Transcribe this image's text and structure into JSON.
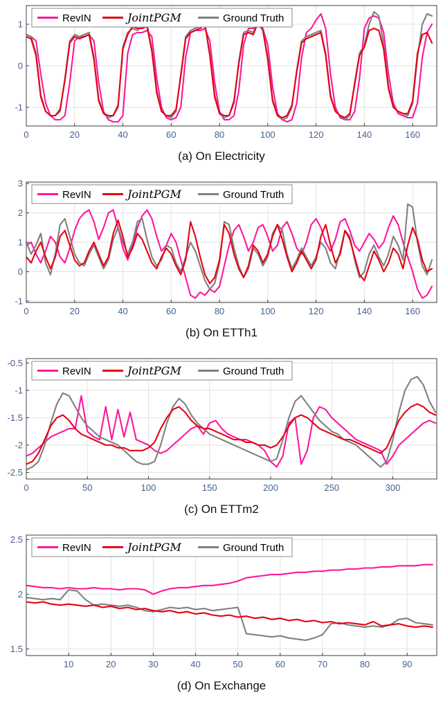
{
  "figure": {
    "legend_labels": [
      "RevIN",
      "JointPGM",
      "Ground Truth"
    ]
  },
  "colors": {
    "revin": "#ff169b",
    "jointpgm": "#e60012",
    "ground_truth": "#7f7f7f",
    "tick_label": "#44618c",
    "grid": "#e2e2e2",
    "axis": "#3c3c3c",
    "legend_border": "#8a8a8a",
    "caption": "#111111"
  },
  "chart_data": [
    {
      "id": "electricity",
      "type": "line",
      "title": "(a) On Electricity",
      "xlabel": "",
      "ylabel": "",
      "xlim": [
        0,
        170
      ],
      "ylim": [
        -1.45,
        1.45
      ],
      "xticks": [
        0,
        20,
        40,
        60,
        80,
        100,
        120,
        140,
        160
      ],
      "yticks": [
        -1,
        0,
        1
      ],
      "x_start": 0,
      "x_step": 2,
      "grid": true,
      "legend_position": "top-left",
      "series": [
        {
          "name": "RevIN",
          "color_key": "revin",
          "values": [
            0.75,
            0.7,
            0.6,
            -0.2,
            -0.9,
            -1.2,
            -1.3,
            -1.3,
            -1.2,
            -0.4,
            0.6,
            0.7,
            0.7,
            0.75,
            0.6,
            -0.4,
            -1.1,
            -1.3,
            -1.35,
            -1.35,
            -1.2,
            0.3,
            0.75,
            0.8,
            0.8,
            0.85,
            0.7,
            -0.3,
            -1.0,
            -1.25,
            -1.3,
            -1.25,
            -1.0,
            0.2,
            0.8,
            0.85,
            0.85,
            0.9,
            0.6,
            -0.4,
            -1.1,
            -1.3,
            -1.3,
            -1.2,
            -0.6,
            0.5,
            0.9,
            0.9,
            0.95,
            0.9,
            0.5,
            -0.5,
            -1.15,
            -1.3,
            -1.35,
            -1.3,
            -0.9,
            0.2,
            0.8,
            0.9,
            1.1,
            1.25,
            0.9,
            -0.2,
            -1.0,
            -1.25,
            -1.3,
            -1.3,
            -1.1,
            -0.3,
            0.9,
            1.15,
            1.2,
            1.15,
            0.8,
            -0.2,
            -0.9,
            -1.15,
            -1.2,
            -1.25,
            -1.25,
            -0.9,
            0.2,
            0.8,
            1.0
          ]
        },
        {
          "name": "JointPGM",
          "color_key": "jointpgm",
          "values": [
            0.7,
            0.65,
            0.25,
            -0.75,
            -1.1,
            -1.2,
            -1.2,
            -1.05,
            -0.35,
            0.55,
            0.7,
            0.65,
            0.7,
            0.75,
            0.15,
            -0.85,
            -1.15,
            -1.2,
            -1.2,
            -0.95,
            0.4,
            0.75,
            0.95,
            0.9,
            0.9,
            0.95,
            0.35,
            -0.65,
            -1.1,
            -1.2,
            -1.2,
            -1.05,
            -0.25,
            0.65,
            0.8,
            0.85,
            0.9,
            1.0,
            0.25,
            -0.75,
            -1.15,
            -1.2,
            -1.2,
            -0.85,
            0.05,
            0.75,
            0.8,
            0.75,
            1.05,
            0.85,
            0.15,
            -0.85,
            -1.2,
            -1.25,
            -1.2,
            -0.95,
            -0.15,
            0.55,
            0.65,
            0.7,
            0.75,
            0.8,
            0.25,
            -0.75,
            -1.1,
            -1.2,
            -1.25,
            -1.15,
            -0.45,
            0.25,
            0.45,
            0.85,
            0.9,
            0.85,
            0.4,
            -0.55,
            -1.0,
            -1.1,
            -1.15,
            -1.15,
            -0.85,
            0.3,
            0.75,
            0.8,
            0.55
          ]
        },
        {
          "name": "Ground Truth",
          "color_key": "ground_truth",
          "values": [
            0.75,
            0.7,
            0.3,
            -0.7,
            -1.1,
            -1.2,
            -1.2,
            -1.1,
            -0.3,
            0.6,
            0.75,
            0.7,
            0.75,
            0.8,
            0.2,
            -0.8,
            -1.15,
            -1.25,
            -1.2,
            -1.0,
            0.45,
            0.8,
            0.9,
            0.85,
            0.95,
            1.0,
            0.4,
            -0.6,
            -1.1,
            -1.2,
            -1.25,
            -1.1,
            -0.2,
            0.7,
            0.85,
            0.9,
            0.95,
            1.0,
            0.3,
            -0.7,
            -1.15,
            -1.25,
            -1.2,
            -0.9,
            0.1,
            0.8,
            0.85,
            0.8,
            1.1,
            0.9,
            0.2,
            -0.8,
            -1.2,
            -1.3,
            -1.25,
            -1.0,
            -0.1,
            0.6,
            0.7,
            0.75,
            0.8,
            0.85,
            0.3,
            -0.7,
            -1.1,
            -1.2,
            -1.3,
            -1.2,
            -0.4,
            0.3,
            0.5,
            1.0,
            1.3,
            1.2,
            0.5,
            -0.5,
            -1.0,
            -1.1,
            -1.15,
            -1.2,
            -0.9,
            0.2,
            1.0,
            1.25,
            1.2
          ]
        }
      ]
    },
    {
      "id": "etth1",
      "type": "line",
      "title": "(b) On ETTh1",
      "xlabel": "",
      "ylabel": "",
      "xlim": [
        0,
        170
      ],
      "ylim": [
        -1.05,
        3.05
      ],
      "xticks": [
        0,
        20,
        40,
        60,
        80,
        100,
        120,
        140,
        160
      ],
      "yticks": [
        -1,
        0,
        1,
        2,
        3
      ],
      "x_start": 0,
      "x_step": 2,
      "grid": true,
      "legend_position": "top-left",
      "series": [
        {
          "name": "RevIN",
          "color_key": "revin",
          "values": [
            0.9,
            1.0,
            0.6,
            0.3,
            0.7,
            1.2,
            1.0,
            0.5,
            0.3,
            0.8,
            1.4,
            1.8,
            2.0,
            2.1,
            1.7,
            1.1,
            1.5,
            2.0,
            2.1,
            1.5,
            0.8,
            0.4,
            0.9,
            1.5,
            1.9,
            2.1,
            1.8,
            1.2,
            0.7,
            0.9,
            1.3,
            1.0,
            0.4,
            -0.2,
            -0.8,
            -0.9,
            -0.7,
            -0.8,
            -0.6,
            -0.7,
            -0.5,
            0.2,
            0.9,
            1.4,
            1.6,
            1.2,
            0.7,
            1.0,
            1.5,
            1.6,
            1.2,
            0.7,
            0.9,
            1.5,
            1.7,
            1.3,
            0.8,
            0.6,
            1.0,
            1.6,
            1.8,
            1.5,
            1.0,
            0.7,
            1.1,
            1.7,
            1.8,
            1.4,
            0.9,
            0.7,
            1.0,
            1.3,
            1.1,
            0.8,
            1.0,
            1.5,
            1.9,
            1.6,
            1.0,
            0.5,
            0.0,
            -0.6,
            -0.9,
            -0.8,
            -0.5
          ]
        },
        {
          "name": "JointPGM",
          "color_key": "jointpgm",
          "values": [
            0.5,
            0.3,
            0.7,
            1.0,
            0.5,
            0.1,
            0.5,
            1.2,
            1.4,
            0.9,
            0.4,
            0.2,
            0.3,
            0.7,
            1.0,
            0.6,
            0.2,
            0.5,
            1.3,
            1.75,
            1.2,
            0.5,
            0.8,
            1.3,
            1.1,
            0.7,
            0.3,
            0.1,
            0.5,
            0.8,
            0.6,
            0.2,
            -0.1,
            0.4,
            1.7,
            1.2,
            0.5,
            -0.1,
            -0.4,
            -0.2,
            0.4,
            1.6,
            1.3,
            0.6,
            0.1,
            -0.2,
            0.2,
            0.9,
            0.7,
            0.3,
            0.6,
            1.2,
            1.6,
            1.1,
            0.5,
            0.0,
            0.3,
            0.7,
            0.4,
            0.1,
            0.4,
            1.2,
            1.6,
            0.9,
            0.3,
            0.6,
            1.4,
            1.1,
            0.5,
            -0.1,
            -0.3,
            0.2,
            0.7,
            0.4,
            0.0,
            0.3,
            0.8,
            0.6,
            0.1,
            0.9,
            1.5,
            1.1,
            0.4,
            0.0,
            0.1
          ]
        },
        {
          "name": "Ground Truth",
          "color_key": "ground_truth",
          "values": [
            1.0,
            0.6,
            0.9,
            1.3,
            0.3,
            -0.1,
            0.6,
            1.6,
            1.8,
            1.2,
            0.6,
            0.3,
            0.2,
            0.6,
            0.9,
            0.5,
            0.1,
            0.4,
            1.1,
            1.5,
            1.0,
            0.6,
            1.0,
            1.7,
            1.8,
            1.1,
            0.5,
            0.2,
            0.4,
            0.9,
            0.8,
            0.3,
            0.0,
            0.5,
            1.0,
            0.7,
            0.2,
            -0.3,
            -0.6,
            -0.4,
            0.3,
            1.7,
            1.6,
            0.8,
            0.2,
            -0.2,
            0.1,
            0.8,
            0.6,
            0.2,
            0.5,
            1.3,
            1.6,
            1.4,
            0.6,
            0.1,
            0.4,
            0.8,
            0.5,
            0.2,
            0.5,
            1.0,
            0.8,
            0.3,
            0.1,
            0.7,
            1.4,
            1.2,
            0.4,
            -0.2,
            0.0,
            0.6,
            0.9,
            0.5,
            0.2,
            0.6,
            1.2,
            0.9,
            0.4,
            2.3,
            2.2,
            1.0,
            0.2,
            -0.1,
            0.4
          ]
        }
      ]
    },
    {
      "id": "ettm2",
      "type": "line",
      "title": "(c) On ETTm2",
      "xlabel": "",
      "ylabel": "",
      "xlim": [
        0,
        336
      ],
      "ylim": [
        -2.62,
        -0.42
      ],
      "xticks": [
        0,
        50,
        100,
        150,
        200,
        250,
        300
      ],
      "yticks": [
        -2.5,
        -2,
        -1.5,
        -1,
        -0.5
      ],
      "x_start": 0,
      "x_step": 5,
      "grid": true,
      "legend_position": "top-left",
      "series": [
        {
          "name": "RevIN",
          "color_key": "revin",
          "values": [
            -2.2,
            -2.15,
            -2.05,
            -1.95,
            -1.85,
            -1.8,
            -1.75,
            -1.7,
            -1.7,
            -1.1,
            -1.75,
            -1.85,
            -1.9,
            -1.3,
            -1.9,
            -1.35,
            -1.85,
            -1.4,
            -1.9,
            -1.95,
            -2.0,
            -2.1,
            -2.15,
            -2.1,
            -2.0,
            -1.9,
            -1.8,
            -1.7,
            -1.65,
            -1.8,
            -1.6,
            -1.55,
            -1.7,
            -1.8,
            -1.85,
            -1.9,
            -1.9,
            -1.95,
            -2.0,
            -2.1,
            -2.3,
            -2.4,
            -2.2,
            -1.6,
            -1.5,
            -2.35,
            -2.1,
            -1.5,
            -1.3,
            -1.35,
            -1.5,
            -1.6,
            -1.7,
            -1.8,
            -1.9,
            -1.95,
            -2.0,
            -2.05,
            -2.1,
            -2.35,
            -2.2,
            -2.0,
            -1.9,
            -1.8,
            -1.7,
            -1.6,
            -1.55,
            -1.6
          ]
        },
        {
          "name": "JointPGM",
          "color_key": "jointpgm",
          "values": [
            -2.35,
            -2.3,
            -2.15,
            -1.9,
            -1.65,
            -1.5,
            -1.45,
            -1.55,
            -1.7,
            -1.8,
            -1.85,
            -1.9,
            -1.95,
            -2.0,
            -2.0,
            -2.05,
            -2.05,
            -2.1,
            -2.1,
            -2.1,
            -2.05,
            -1.95,
            -1.7,
            -1.5,
            -1.35,
            -1.3,
            -1.4,
            -1.55,
            -1.65,
            -1.7,
            -1.7,
            -1.75,
            -1.8,
            -1.85,
            -1.9,
            -1.9,
            -1.95,
            -1.95,
            -2.0,
            -2.0,
            -2.05,
            -2.0,
            -1.85,
            -1.65,
            -1.5,
            -1.45,
            -1.5,
            -1.6,
            -1.7,
            -1.75,
            -1.8,
            -1.85,
            -1.9,
            -1.9,
            -1.95,
            -2.0,
            -2.05,
            -2.1,
            -2.15,
            -2.05,
            -1.8,
            -1.55,
            -1.4,
            -1.3,
            -1.25,
            -1.3,
            -1.4,
            -1.45
          ]
        },
        {
          "name": "Ground Truth",
          "color_key": "ground_truth",
          "values": [
            -2.45,
            -2.4,
            -2.3,
            -2.0,
            -1.6,
            -1.25,
            -1.05,
            -1.1,
            -1.3,
            -1.5,
            -1.65,
            -1.75,
            -1.85,
            -1.9,
            -1.95,
            -2.0,
            -2.1,
            -2.2,
            -2.3,
            -2.35,
            -2.35,
            -2.3,
            -2.0,
            -1.6,
            -1.3,
            -1.15,
            -1.25,
            -1.45,
            -1.6,
            -1.7,
            -1.8,
            -1.85,
            -1.9,
            -1.95,
            -2.0,
            -2.05,
            -2.1,
            -2.15,
            -2.2,
            -2.25,
            -2.3,
            -2.25,
            -1.9,
            -1.5,
            -1.2,
            -1.1,
            -1.25,
            -1.4,
            -1.55,
            -1.65,
            -1.75,
            -1.8,
            -1.9,
            -1.95,
            -2.0,
            -2.1,
            -2.2,
            -2.3,
            -2.4,
            -2.3,
            -1.9,
            -1.4,
            -1.0,
            -0.8,
            -0.75,
            -0.9,
            -1.2,
            -1.4
          ]
        }
      ]
    },
    {
      "id": "exchange",
      "type": "line",
      "title": "(d) On Exchange",
      "xlabel": "",
      "ylabel": "",
      "xlim": [
        0,
        97
      ],
      "ylim": [
        1.44,
        2.54
      ],
      "xticks": [
        10,
        20,
        30,
        40,
        50,
        60,
        70,
        80,
        90
      ],
      "yticks": [
        1.5,
        2,
        2.5
      ],
      "x_start": 0,
      "x_step": 2,
      "grid": true,
      "legend_position": "top-left",
      "series": [
        {
          "name": "RevIN",
          "color_key": "revin",
          "values": [
            2.08,
            2.07,
            2.06,
            2.06,
            2.05,
            2.06,
            2.05,
            2.05,
            2.06,
            2.05,
            2.05,
            2.04,
            2.05,
            2.05,
            2.04,
            2.0,
            2.03,
            2.05,
            2.06,
            2.06,
            2.07,
            2.08,
            2.08,
            2.09,
            2.1,
            2.12,
            2.15,
            2.16,
            2.17,
            2.18,
            2.18,
            2.19,
            2.2,
            2.2,
            2.21,
            2.21,
            2.22,
            2.22,
            2.23,
            2.23,
            2.24,
            2.24,
            2.25,
            2.25,
            2.26,
            2.26,
            2.26,
            2.27,
            2.27
          ]
        },
        {
          "name": "JointPGM",
          "color_key": "jointpgm",
          "values": [
            1.93,
            1.92,
            1.93,
            1.91,
            1.9,
            1.91,
            1.9,
            1.89,
            1.9,
            1.88,
            1.89,
            1.87,
            1.88,
            1.86,
            1.87,
            1.85,
            1.84,
            1.85,
            1.83,
            1.84,
            1.82,
            1.83,
            1.81,
            1.8,
            1.81,
            1.79,
            1.8,
            1.78,
            1.79,
            1.77,
            1.78,
            1.76,
            1.77,
            1.75,
            1.76,
            1.74,
            1.75,
            1.73,
            1.74,
            1.73,
            1.72,
            1.75,
            1.71,
            1.72,
            1.73,
            1.71,
            1.7,
            1.71,
            1.7
          ]
        },
        {
          "name": "Ground Truth",
          "color_key": "ground_truth",
          "values": [
            1.97,
            1.96,
            1.95,
            1.96,
            1.95,
            2.04,
            2.03,
            1.95,
            1.9,
            1.91,
            1.9,
            1.89,
            1.9,
            1.88,
            1.85,
            1.84,
            1.86,
            1.88,
            1.87,
            1.88,
            1.86,
            1.87,
            1.85,
            1.86,
            1.87,
            1.88,
            1.64,
            1.63,
            1.62,
            1.61,
            1.62,
            1.6,
            1.59,
            1.58,
            1.6,
            1.63,
            1.73,
            1.74,
            1.72,
            1.71,
            1.7,
            1.71,
            1.7,
            1.72,
            1.77,
            1.78,
            1.74,
            1.73,
            1.72
          ]
        }
      ]
    }
  ]
}
